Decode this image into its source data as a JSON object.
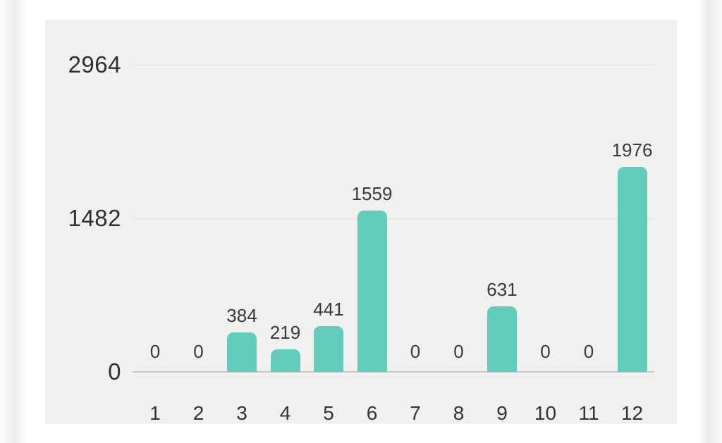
{
  "chart_data": {
    "type": "bar",
    "title": "",
    "xlabel": "",
    "ylabel": "",
    "categories": [
      "1",
      "2",
      "3",
      "4",
      "5",
      "6",
      "7",
      "8",
      "9",
      "10",
      "11",
      "12"
    ],
    "values": [
      0,
      0,
      384,
      219,
      441,
      1559,
      0,
      0,
      631,
      0,
      0,
      1976
    ],
    "value_labels": [
      "0",
      "0",
      "384",
      "219",
      "441",
      "1559",
      "0",
      "0",
      "631",
      "0",
      "0",
      "1976"
    ],
    "y_ticks": [
      0,
      1482,
      2964
    ],
    "y_tick_labels": [
      "0",
      "1482",
      "2964"
    ],
    "ylim": [
      0,
      2964
    ],
    "grid": true,
    "legend": false,
    "bar_color": "#64ccbd",
    "panel_background": "#f0f0ee",
    "gridline_color": "#dededc",
    "axis_line_color": "#c7c7c5",
    "label_color": "#3a3a3a"
  }
}
